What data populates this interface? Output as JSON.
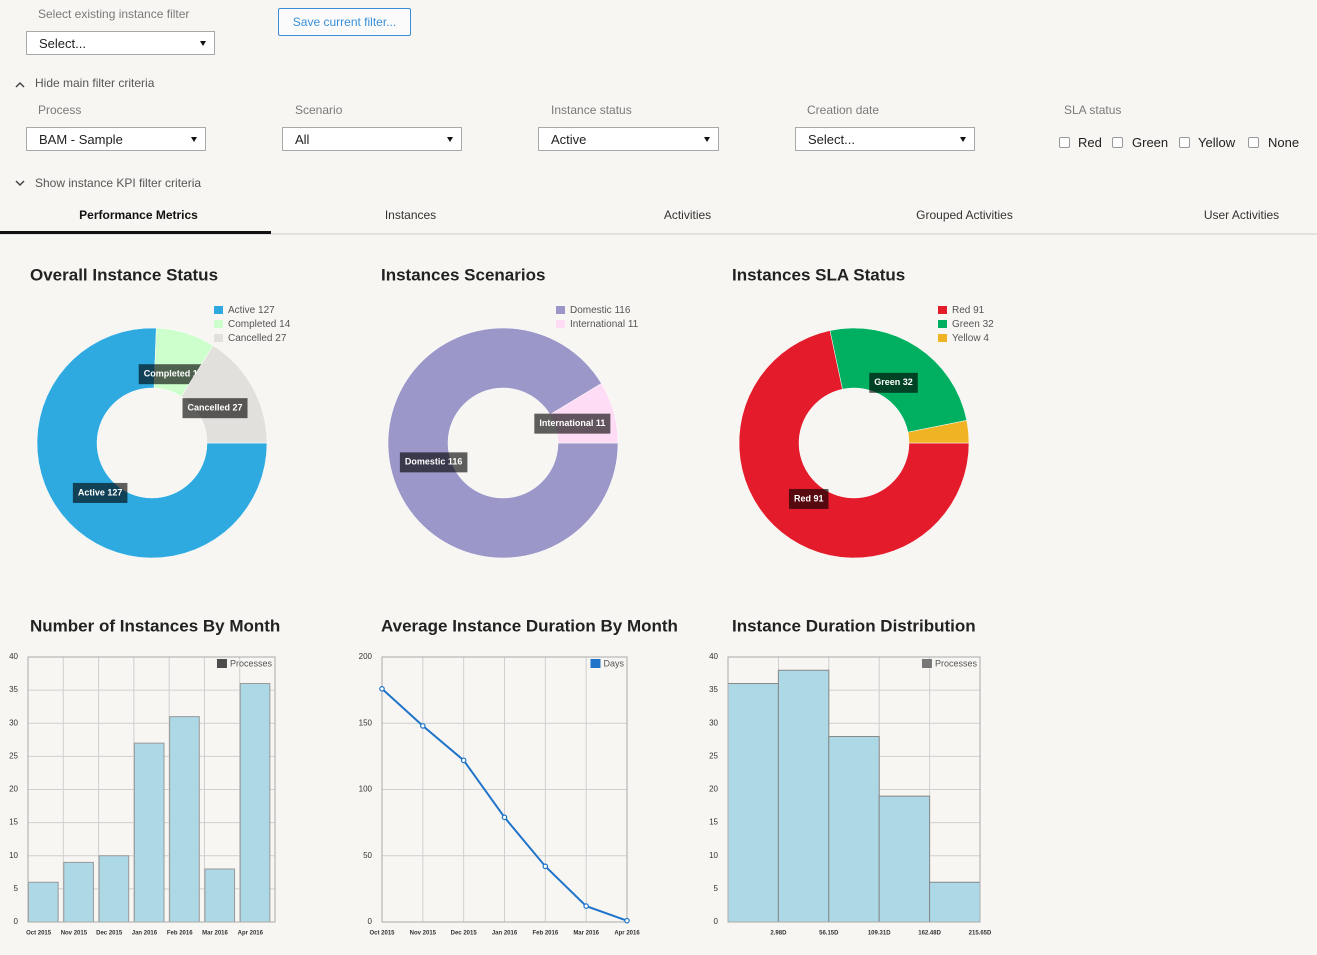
{
  "filter": {
    "label": "Select existing instance filter",
    "select": "Select...",
    "save_button": "Save current filter..."
  },
  "main_filter_toggle": "Hide main filter criteria",
  "fields": [
    {
      "label": "Process",
      "value": "BAM - Sample"
    },
    {
      "label": "Scenario",
      "value": "All"
    },
    {
      "label": "Instance status",
      "value": "Active"
    },
    {
      "label": "Creation date",
      "value": "Select..."
    }
  ],
  "sla": {
    "label": "SLA status",
    "options": [
      "Red",
      "Green",
      "Yellow",
      "None"
    ]
  },
  "kpi_filter_toggle": "Show instance KPI filter criteria",
  "tabs": [
    "Performance Metrics",
    "Instances",
    "Activities",
    "Grouped Activities",
    "User Activities"
  ],
  "chart_data": [
    {
      "type": "donut",
      "title": "Overall Instance Status",
      "categories": [
        "Active 127",
        "Completed 14",
        "Cancelled 27"
      ],
      "values": [
        127,
        14,
        27
      ],
      "colors": [
        "#2eaae1",
        "#ccffcc",
        "#e2e0dd"
      ]
    },
    {
      "type": "donut",
      "title": "Instances Scenarios",
      "categories": [
        "Domestic 116",
        "International 11"
      ],
      "values": [
        116,
        11
      ],
      "colors": [
        "#9b97c8",
        "#ffdcf6"
      ]
    },
    {
      "type": "donut",
      "title": "Instances SLA Status",
      "categories": [
        "Red 91",
        "Green 32",
        "Yellow 4"
      ],
      "values": [
        91,
        32,
        4
      ],
      "colors": [
        "#e31b2b",
        "#00b060",
        "#f0b323"
      ]
    },
    {
      "type": "bar",
      "title": "Number of Instances By Month",
      "categories": [
        "Oct 2015",
        "Nov 2015",
        "Dec 2015",
        "Jan 2016",
        "Feb 2016",
        "Mar 2016",
        "Apr 2016"
      ],
      "series": [
        {
          "name": "Processes",
          "color": "#4d4d4d",
          "values": [
            6,
            9,
            10,
            27,
            31,
            8,
            36
          ]
        }
      ],
      "bar_color": "#add8e6",
      "ylim": [
        0,
        40
      ],
      "yticks": [
        0,
        5,
        10,
        15,
        20,
        25,
        30,
        35,
        40
      ],
      "grid": true
    },
    {
      "type": "line",
      "title": "Average Instance Duration By Month",
      "categories": [
        "Oct 2015",
        "Nov 2015",
        "Dec 2015",
        "Jan 2016",
        "Feb 2016",
        "Mar 2016",
        "Apr 2016"
      ],
      "series": [
        {
          "name": "Days",
          "color": "#1f74c9",
          "values": [
            176,
            148,
            122,
            79,
            42,
            12,
            1
          ]
        }
      ],
      "ylim": [
        0,
        200
      ],
      "yticks": [
        0,
        50,
        100,
        150,
        200
      ],
      "grid": true
    },
    {
      "type": "histogram",
      "title": "Instance Duration Distribution",
      "bins": [
        -50.19,
        2.98,
        56.15,
        109.31,
        162.48,
        215.65
      ],
      "series": [
        {
          "name": "Processes",
          "color": "#777777",
          "values": [
            36,
            38,
            28,
            19,
            6
          ]
        }
      ],
      "bar_color": "#add8e6",
      "xlim": [
        -50.19,
        215.65
      ],
      "xticks": [
        {
          "value": 2.98,
          "label": "2.98D"
        },
        {
          "value": 56.15,
          "label": "56.15D"
        },
        {
          "value": 109.31,
          "label": "109.31D"
        },
        {
          "value": 162.48,
          "label": "162.48D"
        },
        {
          "value": 215.65,
          "label": "215.65D"
        }
      ],
      "ylim": [
        0,
        40
      ],
      "yticks": [
        0,
        5,
        10,
        15,
        20,
        25,
        30,
        35,
        40
      ],
      "grid": true
    }
  ]
}
